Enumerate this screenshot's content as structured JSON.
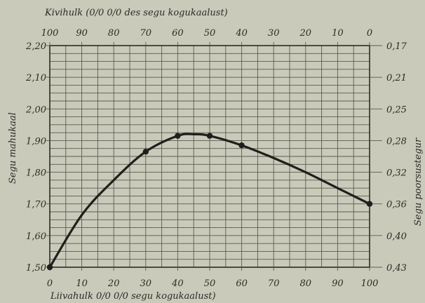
{
  "chart_data": {
    "type": "line",
    "title": "",
    "xlabel": "Liivahulk 0/0 0/0 segu kogukaalust)",
    "xlabel_top": "Kivihulk (0/0 0/0 des segu kogukaalust)",
    "ylabel": "Segu mahukaal",
    "ylabel_right": "Segu poorsustegur",
    "xlim": [
      0,
      100
    ],
    "ylim": [
      1.5,
      2.2
    ],
    "x_ticks": [
      "0",
      "10",
      "20",
      "30",
      "40",
      "50",
      "60",
      "70",
      "80",
      "90",
      "100"
    ],
    "x_top_ticks": [
      "100",
      "90",
      "80",
      "70",
      "60",
      "50",
      "40",
      "30",
      "20",
      "10",
      "0"
    ],
    "y_ticks": [
      "1,50",
      "1,60",
      "1,70",
      "1,80",
      "1,90",
      "2,00",
      "2,10",
      "2,20"
    ],
    "y_right_ticks": [
      "0,43",
      "0,40",
      "0,36",
      "0,32",
      "0,28",
      "0,25",
      "0,21",
      "0,17"
    ],
    "grid": true,
    "series": [
      {
        "x": [
          0,
          10,
          20,
          30,
          40,
          45,
          50,
          60,
          70,
          80,
          90,
          100
        ],
        "values": [
          1.5,
          1.665,
          1.775,
          1.865,
          1.915,
          1.92,
          1.915,
          1.885,
          1.845,
          1.8,
          1.75,
          1.7
        ],
        "markers_x": [
          0,
          30,
          40,
          50,
          60,
          100
        ]
      }
    ]
  }
}
